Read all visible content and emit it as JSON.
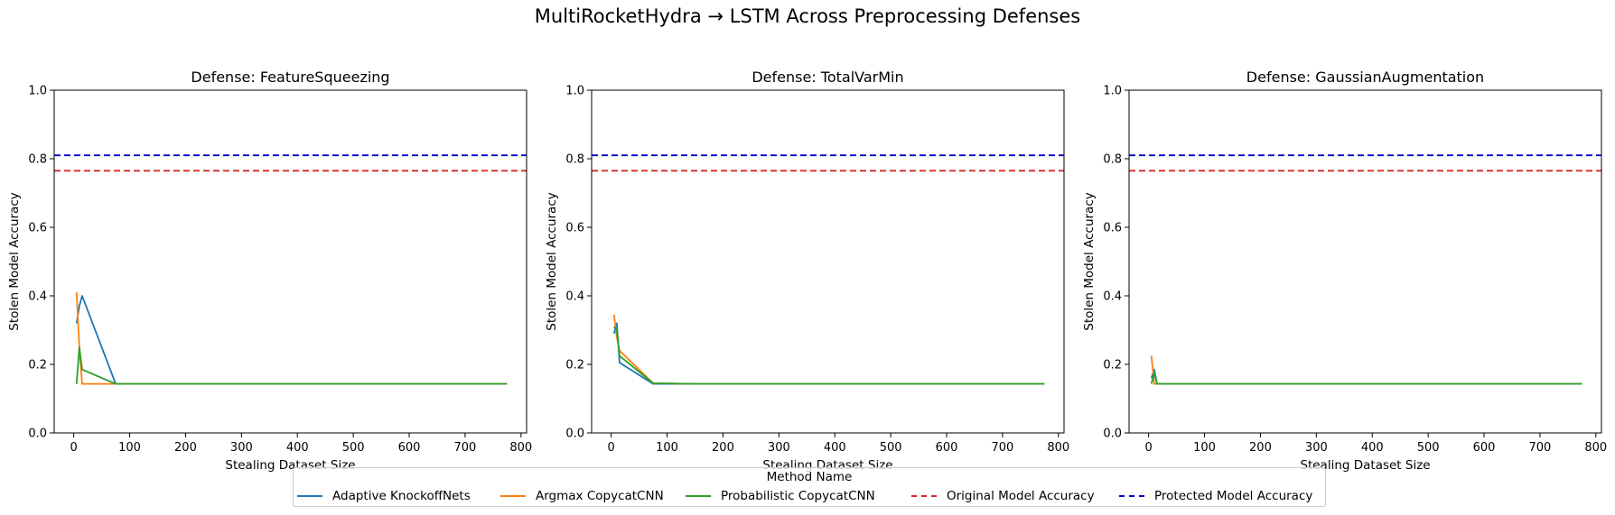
{
  "suptitle": "MultiRocketHydra → LSTM Across Preprocessing Defenses",
  "legend": {
    "title": "Method Name",
    "items": [
      {
        "label": "Adaptive KnockoffNets",
        "color": "#1f77b4",
        "style": "solid"
      },
      {
        "label": "Argmax CopycatCNN",
        "color": "#ff7f0e",
        "style": "solid"
      },
      {
        "label": "Probabilistic CopycatCNN",
        "color": "#2ca02c",
        "style": "solid"
      },
      {
        "label": "Original Model Accuracy",
        "color": "#d62728",
        "style": "dashed"
      },
      {
        "label": "Protected Model Accuracy",
        "color": "#0000cc",
        "style": "dashed"
      }
    ]
  },
  "chart_data": [
    {
      "type": "line",
      "title": "Defense: FeatureSqueezing",
      "xlabel": "Stealing Dataset Size",
      "ylabel": "Stolen Model Accuracy",
      "xlim": [
        -35,
        810
      ],
      "ylim": [
        0,
        1.0
      ],
      "xticks": [
        0,
        100,
        200,
        300,
        400,
        500,
        600,
        700,
        800
      ],
      "yticks": [
        0.0,
        0.2,
        0.4,
        0.6,
        0.8,
        1.0
      ],
      "hlines": [
        {
          "name": "Original Model Accuracy",
          "y": 0.765,
          "color": "#d62728"
        },
        {
          "name": "Protected Model Accuracy",
          "y": 0.81,
          "color": "#0000cc"
        }
      ],
      "series": [
        {
          "name": "Adaptive KnockoffNets",
          "color": "#1f77b4",
          "x": [
            5,
            10,
            15,
            75,
            150,
            300,
            500,
            775
          ],
          "y": [
            0.32,
            0.37,
            0.4,
            0.143,
            0.143,
            0.143,
            0.143,
            0.143
          ]
        },
        {
          "name": "Argmax CopycatCNN",
          "color": "#ff7f0e",
          "x": [
            5,
            10,
            15,
            75,
            150,
            300,
            500,
            775
          ],
          "y": [
            0.41,
            0.25,
            0.143,
            0.143,
            0.143,
            0.143,
            0.143,
            0.143
          ]
        },
        {
          "name": "Probabilistic CopycatCNN",
          "color": "#2ca02c",
          "x": [
            5,
            10,
            15,
            75,
            150,
            300,
            500,
            775
          ],
          "y": [
            0.143,
            0.25,
            0.185,
            0.143,
            0.143,
            0.143,
            0.143,
            0.143
          ]
        }
      ]
    },
    {
      "type": "line",
      "title": "Defense: TotalVarMin",
      "xlabel": "Stealing Dataset Size",
      "ylabel": "Stolen Model Accuracy",
      "xlim": [
        -35,
        810
      ],
      "ylim": [
        0,
        1.0
      ],
      "xticks": [
        0,
        100,
        200,
        300,
        400,
        500,
        600,
        700,
        800
      ],
      "yticks": [
        0.0,
        0.2,
        0.4,
        0.6,
        0.8,
        1.0
      ],
      "hlines": [
        {
          "name": "Original Model Accuracy",
          "y": 0.765,
          "color": "#d62728"
        },
        {
          "name": "Protected Model Accuracy",
          "y": 0.81,
          "color": "#0000cc"
        }
      ],
      "series": [
        {
          "name": "Adaptive KnockoffNets",
          "color": "#1f77b4",
          "x": [
            5,
            10,
            15,
            75,
            150,
            300,
            500,
            775
          ],
          "y": [
            0.29,
            0.32,
            0.205,
            0.143,
            0.143,
            0.143,
            0.143,
            0.143
          ]
        },
        {
          "name": "Argmax CopycatCNN",
          "color": "#ff7f0e",
          "x": [
            5,
            10,
            15,
            75,
            150,
            300,
            500,
            775
          ],
          "y": [
            0.345,
            0.28,
            0.24,
            0.145,
            0.143,
            0.143,
            0.143,
            0.143
          ]
        },
        {
          "name": "Probabilistic CopycatCNN",
          "color": "#2ca02c",
          "x": [
            5,
            10,
            15,
            75,
            150,
            300,
            500,
            775
          ],
          "y": [
            0.31,
            0.3,
            0.225,
            0.145,
            0.143,
            0.143,
            0.143,
            0.143
          ]
        }
      ]
    },
    {
      "type": "line",
      "title": "Defense: GaussianAugmentation",
      "xlabel": "Stealing Dataset Size",
      "ylabel": "Stolen Model Accuracy",
      "xlim": [
        -35,
        810
      ],
      "ylim": [
        0,
        1.0
      ],
      "xticks": [
        0,
        100,
        200,
        300,
        400,
        500,
        600,
        700,
        800
      ],
      "yticks": [
        0.0,
        0.2,
        0.4,
        0.6,
        0.8,
        1.0
      ],
      "hlines": [
        {
          "name": "Original Model Accuracy",
          "y": 0.765,
          "color": "#d62728"
        },
        {
          "name": "Protected Model Accuracy",
          "y": 0.81,
          "color": "#0000cc"
        }
      ],
      "series": [
        {
          "name": "Adaptive KnockoffNets",
          "color": "#1f77b4",
          "x": [
            5,
            10,
            15,
            75,
            150,
            300,
            500,
            775
          ],
          "y": [
            0.16,
            0.185,
            0.143,
            0.143,
            0.143,
            0.143,
            0.143,
            0.143
          ]
        },
        {
          "name": "Argmax CopycatCNN",
          "color": "#ff7f0e",
          "x": [
            5,
            10,
            15,
            75,
            150,
            300,
            500,
            775
          ],
          "y": [
            0.225,
            0.143,
            0.143,
            0.143,
            0.143,
            0.143,
            0.143,
            0.143
          ]
        },
        {
          "name": "Probabilistic CopycatCNN",
          "color": "#2ca02c",
          "x": [
            5,
            10,
            15,
            75,
            150,
            300,
            500,
            775
          ],
          "y": [
            0.143,
            0.175,
            0.143,
            0.143,
            0.143,
            0.143,
            0.143,
            0.143
          ]
        }
      ]
    }
  ]
}
